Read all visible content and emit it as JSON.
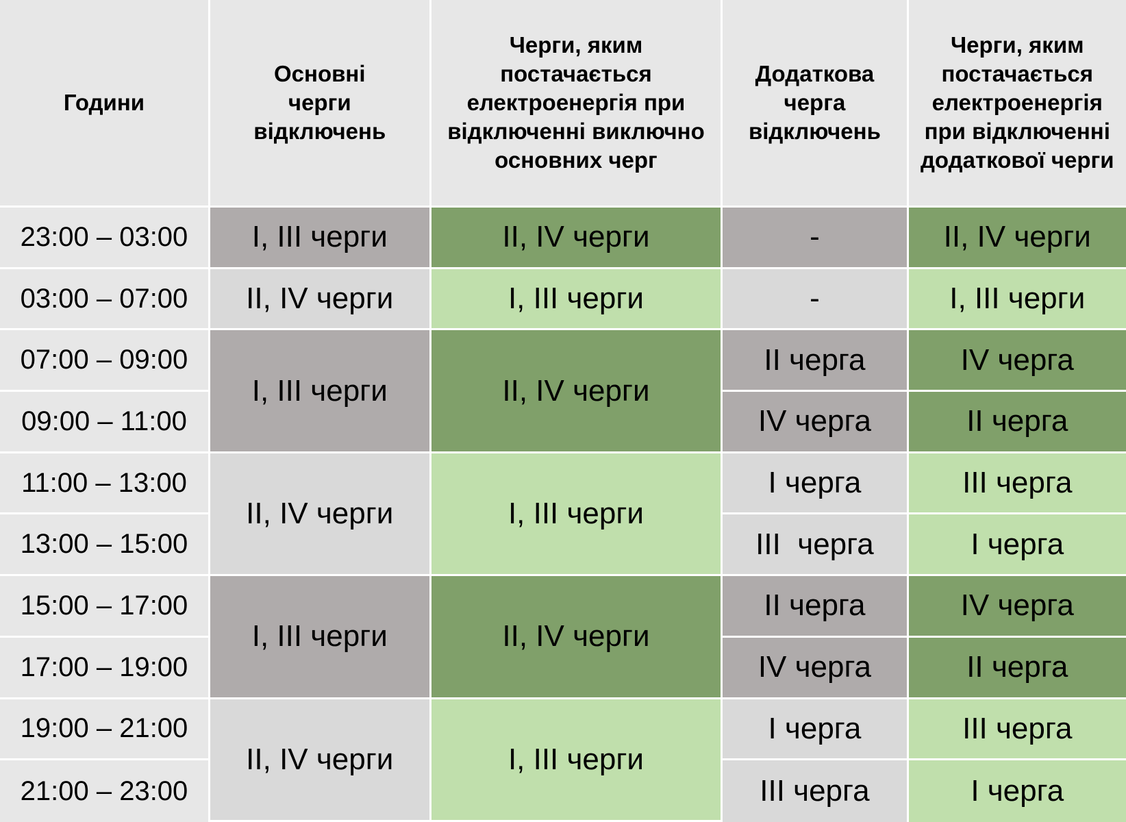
{
  "headers": {
    "hours": "Години",
    "main_queues": "Основні черги відключень",
    "powered_main": "Черги, яким постачається електроенергія при відключенні виключно основних черг",
    "additional_queue": "Додаткова черга відключень",
    "powered_additional": "Черги, яким постачається електроенергія при відключенні додаткової черги"
  },
  "hours": [
    "23:00 – 03:00",
    "03:00 – 07:00",
    "07:00 – 09:00",
    "09:00 – 11:00",
    "11:00 – 13:00",
    "13:00 – 15:00",
    "15:00 – 17:00",
    "17:00 – 19:00",
    "19:00 – 21:00",
    "21:00 – 23:00"
  ],
  "main_queues": [
    "I, III черги",
    "II, IV черги",
    "I, III черги",
    "II, IV черги",
    "I, III черги",
    "II, IV черги"
  ],
  "powered_main": [
    "II, IV черги",
    "I, III черги",
    "II, IV черги",
    "I, III черги",
    "II, IV черги",
    "I, III черги"
  ],
  "additional_queue": [
    "-",
    "-",
    "II черга",
    "IV черга",
    "I черга",
    "III  черга",
    "II черга",
    "IV черга",
    "I черга",
    "III черга"
  ],
  "powered_additional": [
    "II, IV черги",
    "I, III черги",
    "IV черга",
    "II черга",
    "III черга",
    "I черга",
    "IV черга",
    "II черга",
    "III черга",
    "I черга"
  ],
  "colors": {
    "header_bg": "#e7e7e7",
    "off_dark": "#afabab",
    "off_light": "#d9d9d9",
    "on_dark": "#80a06a",
    "on_light": "#c0dfac"
  }
}
